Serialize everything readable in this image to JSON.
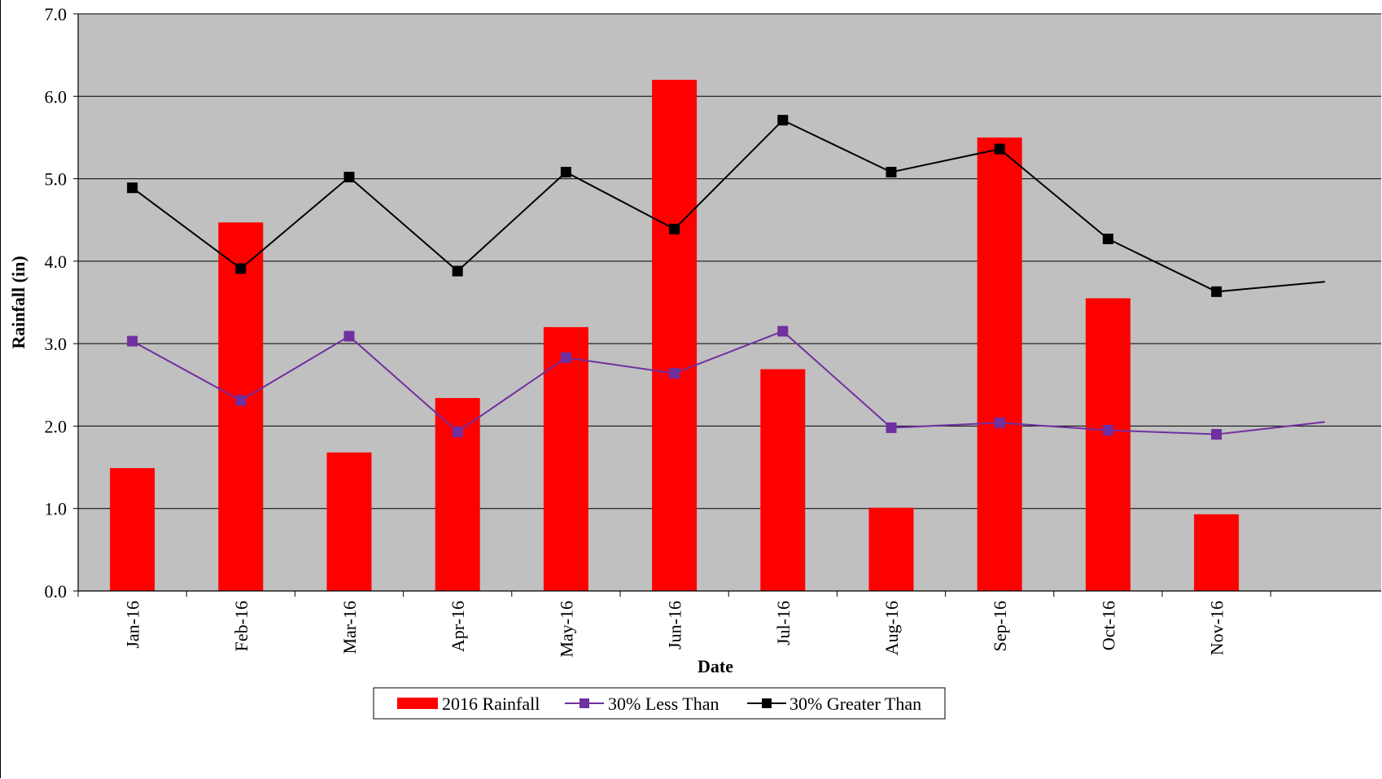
{
  "chart_data": {
    "type": "bar",
    "categories": [
      "Jan-16",
      "Feb-16",
      "Mar-16",
      "Apr-16",
      "May-16",
      "Jun-16",
      "Jul-16",
      "Aug-16",
      "Sep-16",
      "Oct-16",
      "Nov-16"
    ],
    "series": [
      {
        "name": "2016 Rainfall",
        "type": "bar",
        "color": "#ff0000",
        "values": [
          1.49,
          4.47,
          1.68,
          2.34,
          3.2,
          6.2,
          2.69,
          1.01,
          5.5,
          3.55,
          0.93
        ]
      },
      {
        "name": "30% Less Than",
        "type": "line",
        "color": "#7030a0",
        "values": [
          3.03,
          2.31,
          3.09,
          1.93,
          2.83,
          2.64,
          3.15,
          1.98,
          2.04,
          1.95,
          1.9
        ]
      },
      {
        "name": "30% Greater Than",
        "type": "line",
        "color": "#000000",
        "values": [
          4.89,
          3.91,
          5.02,
          3.88,
          5.08,
          4.39,
          5.71,
          5.08,
          5.36,
          4.27,
          3.63
        ]
      }
    ],
    "xlabel": "Date",
    "ylabel": "Rainfall (in)",
    "ylim": [
      0,
      7
    ],
    "yticks": [
      "0.0",
      "1.0",
      "2.0",
      "3.0",
      "4.0",
      "5.0",
      "6.0",
      "7.0"
    ],
    "grid": true,
    "plot_background": "#c0c0c0",
    "legend_position": "bottom"
  }
}
